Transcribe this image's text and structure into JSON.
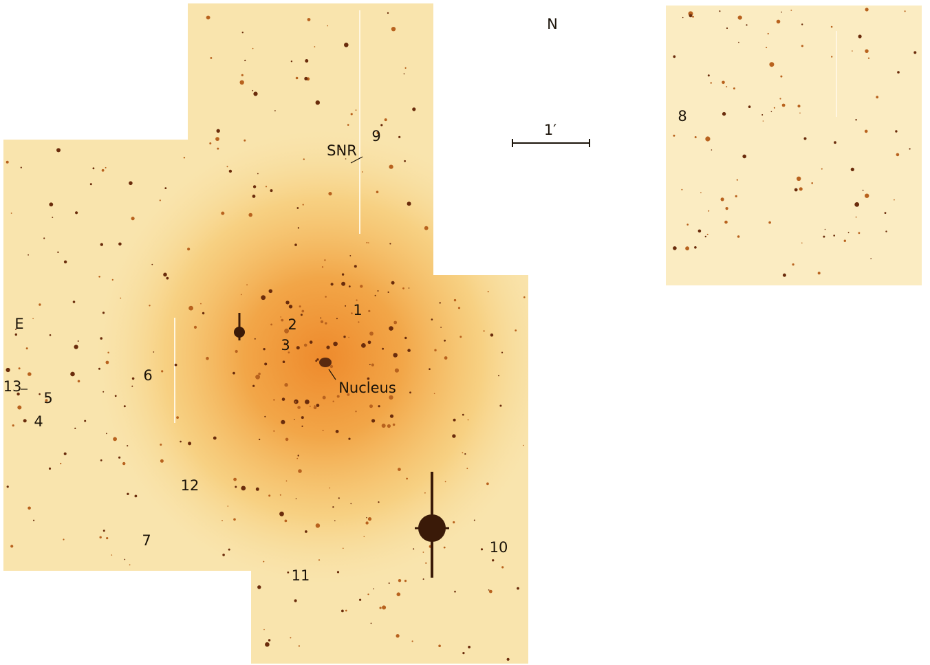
{
  "compass": {
    "north": "N",
    "east": "E"
  },
  "scale_bar": {
    "label": "1′"
  },
  "labels": {
    "snr": "SNR",
    "nucleus": "Nucleus",
    "regions": [
      "1",
      "2",
      "3",
      "4",
      "5",
      "6",
      "7",
      "8",
      "9",
      "10",
      "11",
      "12",
      "13"
    ]
  }
}
